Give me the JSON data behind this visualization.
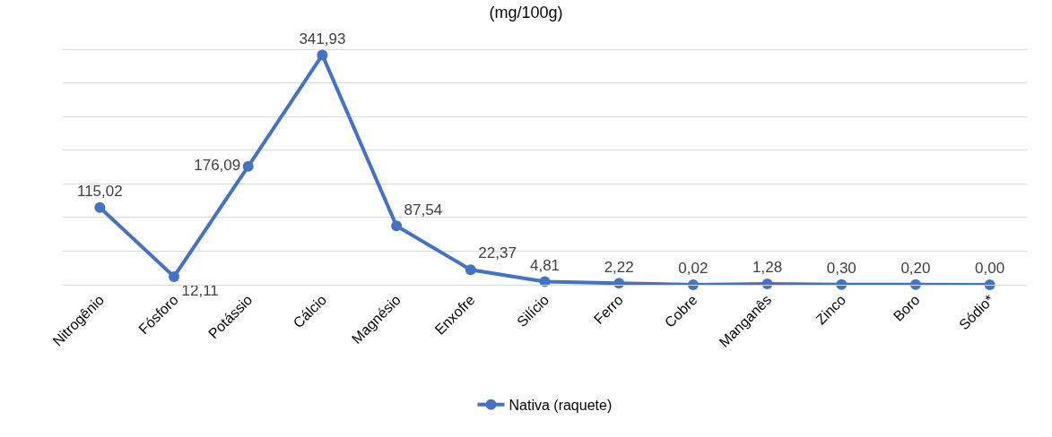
{
  "chart_data": {
    "type": "line",
    "title": "(mg/100g)",
    "categories": [
      "Nitrogênio",
      "Fósforo",
      "Potássio",
      "Cálcio",
      "Magnésio",
      "Enxofre",
      "Silício",
      "Ferro",
      "Cobre",
      "Manganês",
      "Zinco",
      "Boro",
      "Sódio*"
    ],
    "series": [
      {
        "name": "Nativa (raquete)",
        "color": "#4472c4",
        "values": [
          115.02,
          12.11,
          176.09,
          341.93,
          87.54,
          22.37,
          4.81,
          2.22,
          0.02,
          1.28,
          0.3,
          0.2,
          0.0
        ],
        "value_labels": [
          "115,02",
          "12,11",
          "176,09",
          "341,93",
          "87,54",
          "22,37",
          "4,81",
          "2,22",
          "0,02",
          "1,28",
          "0,30",
          "0,20",
          "0,00"
        ]
      }
    ],
    "tick_labels": "x",
    "grid": "y",
    "legend": "bottom",
    "marker": "circle",
    "line_style": "solid"
  }
}
